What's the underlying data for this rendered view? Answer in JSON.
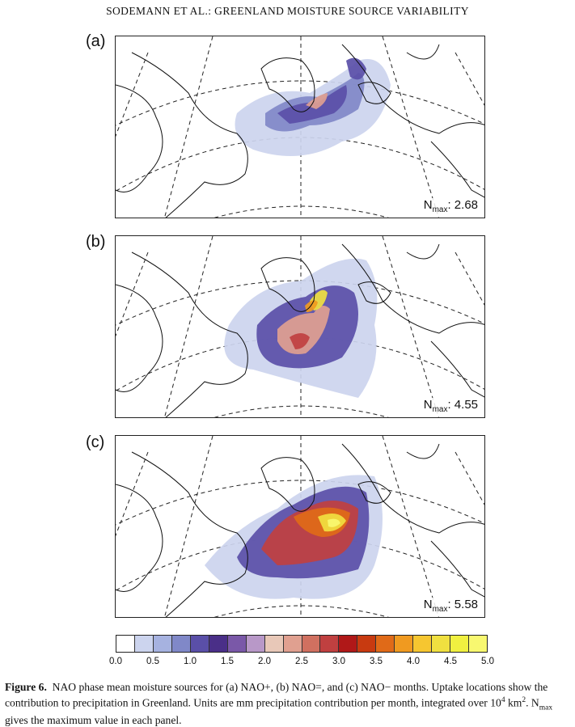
{
  "running_head": "SODEMANN ET AL.: GREENLAND MOISTURE SOURCE VARIABILITY",
  "panels": [
    {
      "letter": "(a)",
      "nmax_label": "N",
      "nmax_sub": "max",
      "nmax_value": ": 2.68",
      "peak": 2.68
    },
    {
      "letter": "(b)",
      "nmax_label": "N",
      "nmax_sub": "max",
      "nmax_value": ": 4.55",
      "peak": 4.55
    },
    {
      "letter": "(c)",
      "nmax_label": "N",
      "nmax_sub": "max",
      "nmax_value": ": 5.58",
      "peak": 5.58
    }
  ],
  "colorbar": {
    "ticks": [
      "0.0",
      "0.5",
      "1.0",
      "1.5",
      "2.0",
      "2.5",
      "3.0",
      "3.5",
      "4.0",
      "4.5",
      "5.0"
    ],
    "colors": [
      "#ffffff",
      "#ccd4ee",
      "#a6b2e0",
      "#8088c8",
      "#5a4fa8",
      "#4a2f88",
      "#7a58a8",
      "#b898c8",
      "#e8c8b8",
      "#e0a090",
      "#d07060",
      "#c04040",
      "#b01818",
      "#c83a10",
      "#e06a18",
      "#f09a20",
      "#f6c630",
      "#f0e040",
      "#f0f040",
      "#f8f870"
    ]
  },
  "caption": {
    "label": "Figure 6.",
    "text1": "NAO phase mean moisture sources for (a) NAO+, (b) NAO=, and (c) NAO− months. Uptake locations show the contribution to precipitation in Greenland. Units are mm precipitation contribution per month, integrated over 10",
    "sup": "4",
    "text2": " km",
    "sup2": "2",
    "text3": ". N",
    "sub": "max",
    "text4": " gives the maximum value in each panel."
  }
}
